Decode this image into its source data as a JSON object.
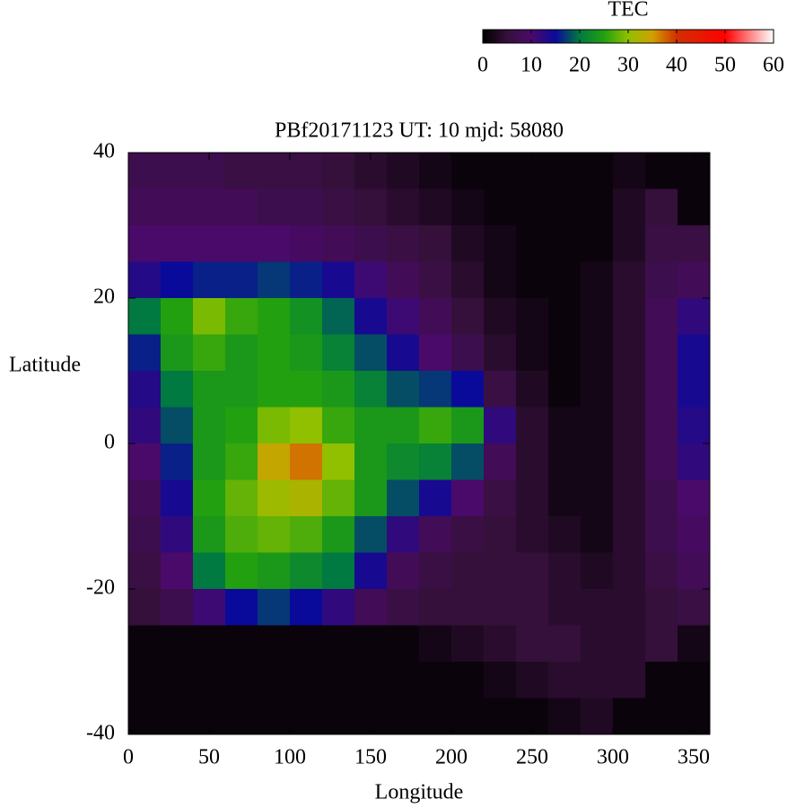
{
  "chart_data": {
    "type": "heatmap",
    "title": "PBf20171123  UT: 10  mjd: 58080",
    "xlabel": "Longitude",
    "ylabel": "Latitude",
    "colorbar_label": "TEC",
    "xlim": [
      0,
      360
    ],
    "xticks": [
      0,
      50,
      100,
      150,
      200,
      250,
      300,
      350
    ],
    "ylim": [
      -40,
      40
    ],
    "yticks": [
      -40,
      -20,
      0,
      20,
      40
    ],
    "clim": [
      0,
      60
    ],
    "cticks": [
      0,
      10,
      20,
      30,
      40,
      50,
      60
    ],
    "colorscale": [
      {
        "value": 0,
        "color": "#000000"
      },
      {
        "value": 5,
        "color": "#35103a"
      },
      {
        "value": 10,
        "color": "#4a0a6a"
      },
      {
        "value": 15,
        "color": "#0a0a9a"
      },
      {
        "value": 20,
        "color": "#007a40"
      },
      {
        "value": 25,
        "color": "#22a010"
      },
      {
        "value": 30,
        "color": "#90c000"
      },
      {
        "value": 35,
        "color": "#d0a000"
      },
      {
        "value": 40,
        "color": "#d03000"
      },
      {
        "value": 50,
        "color": "#ff0000"
      },
      {
        "value": 60,
        "color": "#ffffff"
      }
    ],
    "x": [
      10,
      30,
      50,
      70,
      90,
      110,
      130,
      150,
      170,
      190,
      210,
      230,
      250,
      270,
      290,
      310,
      330,
      350
    ],
    "y": [
      37.5,
      32.5,
      27.5,
      22.5,
      17.5,
      12.5,
      7.5,
      2.5,
      -2.5,
      -7.5,
      -12.5,
      -17.5,
      -22.5,
      -27.5,
      -32.5,
      -37.5
    ],
    "z": [
      [
        7,
        7,
        7,
        6,
        6,
        6,
        5,
        4,
        3,
        2,
        1,
        1,
        1,
        1,
        1,
        2,
        1,
        1
      ],
      [
        8,
        8,
        8,
        8,
        7,
        7,
        6,
        5,
        4,
        3,
        2,
        1,
        1,
        1,
        1,
        3,
        5,
        1
      ],
      [
        10,
        10,
        10,
        10,
        10,
        9,
        8,
        7,
        6,
        5,
        3,
        2,
        1,
        1,
        1,
        3,
        6,
        6
      ],
      [
        13,
        15,
        16,
        16,
        17,
        16,
        14,
        11,
        8,
        6,
        4,
        2,
        1,
        1,
        2,
        4,
        7,
        8
      ],
      [
        20,
        25,
        29,
        26,
        25,
        23,
        19,
        14,
        11,
        8,
        5,
        3,
        2,
        1,
        2,
        4,
        8,
        12
      ],
      [
        16,
        24,
        26,
        24,
        25,
        24,
        21,
        18,
        14,
        10,
        7,
        4,
        2,
        1,
        2,
        4,
        8,
        14
      ],
      [
        13,
        20,
        24,
        24,
        25,
        25,
        24,
        21,
        18,
        17,
        15,
        6,
        3,
        1,
        2,
        4,
        8,
        14
      ],
      [
        12,
        18,
        24,
        25,
        29,
        30,
        26,
        24,
        24,
        26,
        24,
        12,
        4,
        2,
        2,
        4,
        8,
        13
      ],
      [
        10,
        16,
        24,
        26,
        34,
        37,
        30,
        24,
        22,
        21,
        18,
        8,
        4,
        2,
        2,
        4,
        8,
        12
      ],
      [
        8,
        14,
        25,
        28,
        31,
        32,
        28,
        24,
        18,
        14,
        10,
        6,
        4,
        2,
        2,
        4,
        7,
        10
      ],
      [
        7,
        12,
        24,
        27,
        28,
        27,
        24,
        18,
        12,
        8,
        6,
        5,
        4,
        3,
        2,
        4,
        7,
        9
      ],
      [
        6,
        10,
        20,
        25,
        24,
        22,
        20,
        14,
        8,
        6,
        5,
        5,
        5,
        4,
        3,
        4,
        6,
        8
      ],
      [
        5,
        7,
        11,
        15,
        17,
        15,
        12,
        8,
        6,
        5,
        5,
        5,
        5,
        4,
        4,
        4,
        5,
        6
      ],
      [
        1,
        1,
        1,
        1,
        1,
        1,
        1,
        1,
        1,
        2,
        3,
        4,
        5,
        5,
        4,
        4,
        5,
        2
      ],
      [
        1,
        1,
        1,
        1,
        1,
        1,
        1,
        1,
        1,
        1,
        1,
        2,
        3,
        4,
        4,
        4,
        1,
        1
      ],
      [
        1,
        1,
        1,
        1,
        1,
        1,
        1,
        1,
        1,
        1,
        1,
        1,
        1,
        2,
        3,
        1,
        1,
        1
      ]
    ]
  }
}
